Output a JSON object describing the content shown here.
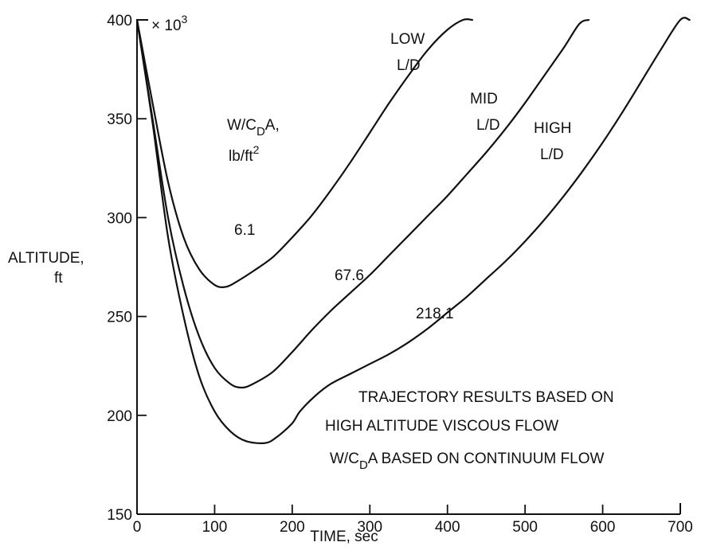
{
  "chart_data": {
    "type": "line",
    "xlabel": "TIME, sec",
    "ylabel": [
      "ALTITUDE,",
      "ft"
    ],
    "y_multiplier": "× 10",
    "y_multiplier_exp": "3",
    "xlim": [
      0,
      700
    ],
    "ylim": [
      150,
      400
    ],
    "x_ticks": [
      0,
      100,
      200,
      300,
      400,
      500,
      600,
      700
    ],
    "y_ticks": [
      150,
      200,
      250,
      300,
      350,
      400
    ],
    "grid": false,
    "legend": "none",
    "series": [
      {
        "name": "LOW L/D",
        "label_lines": [
          "LOW",
          "L/D"
        ],
        "value_label": "6.1",
        "x": [
          0,
          20,
          40,
          60,
          80,
          100,
          115,
          130,
          150,
          175,
          200,
          225,
          250,
          275,
          300,
          325,
          350,
          375,
          400,
          420,
          432
        ],
        "y": [
          400,
          358,
          318,
          290,
          274,
          266,
          265,
          268,
          273,
          280,
          290,
          301,
          314,
          328,
          343,
          358,
          372,
          385,
          395,
          400,
          400
        ]
      },
      {
        "name": "MID L/D",
        "label_lines": [
          "MID",
          "L/D"
        ],
        "value_label": "67.6",
        "x": [
          0,
          20,
          40,
          60,
          80,
          100,
          120,
          135,
          150,
          175,
          200,
          225,
          250,
          275,
          300,
          325,
          350,
          375,
          400,
          425,
          450,
          475,
          500,
          525,
          550,
          570,
          582
        ],
        "y": [
          400,
          350,
          300,
          265,
          240,
          224,
          216,
          214,
          216,
          222,
          232,
          243,
          253,
          262,
          271,
          281,
          291,
          301,
          311,
          322,
          333,
          345,
          358,
          372,
          386,
          398,
          400
        ]
      },
      {
        "name": "HIGH L/D",
        "label_lines": [
          "HIGH",
          "L/D"
        ],
        "value_label": "218.1",
        "x": [
          0,
          20,
          40,
          60,
          80,
          100,
          120,
          140,
          165,
          180,
          200,
          210,
          230,
          250,
          275,
          300,
          325,
          350,
          375,
          400,
          425,
          450,
          475,
          500,
          525,
          550,
          575,
          600,
          625,
          650,
          675,
          700,
          712
        ],
        "y": [
          400,
          348,
          290,
          250,
          220,
          202,
          192,
          187,
          186,
          189,
          196,
          202,
          210,
          216,
          221,
          226,
          231,
          237,
          244,
          252,
          260,
          269,
          278,
          288,
          299,
          311,
          324,
          338,
          353,
          369,
          385,
          400,
          400
        ]
      }
    ],
    "annotations": {
      "param_label": {
        "line1": "W/C",
        "line1_sub": "D",
        "line1_tail": "A,",
        "line2": "lb/ft",
        "line2_sup": "2"
      },
      "note_line1": "TRAJECTORY RESULTS BASED ON",
      "note_line2": "HIGH ALTITUDE VISCOUS FLOW",
      "note_line3_pre": "W/C",
      "note_line3_sub": "D",
      "note_line3_post": "A BASED ON CONTINUUM FLOW"
    }
  }
}
